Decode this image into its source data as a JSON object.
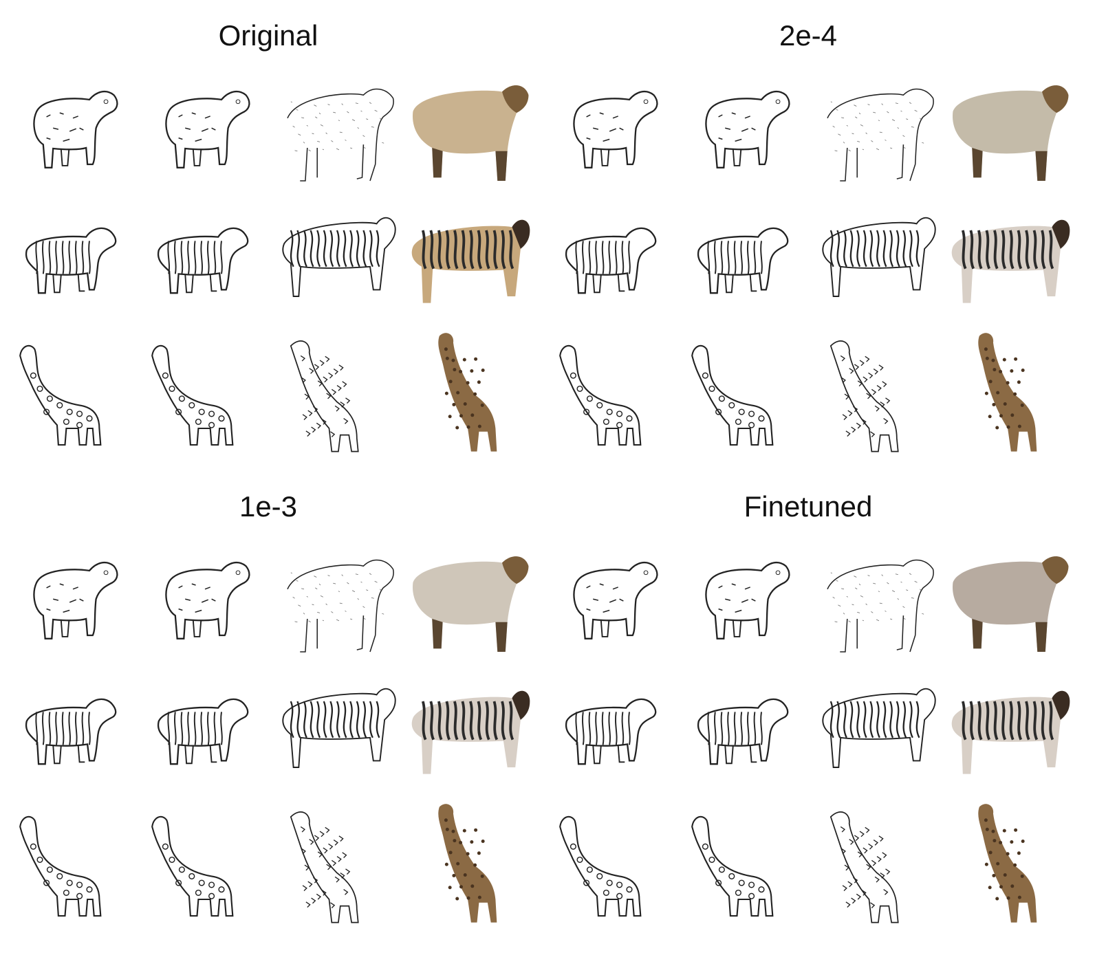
{
  "panels": [
    {
      "title": "Original",
      "rows": [
        "sheep",
        "zebra",
        "giraffe"
      ]
    },
    {
      "title": "2e-4",
      "rows": [
        "sheep",
        "zebra",
        "giraffe"
      ]
    },
    {
      "title": "1e-3",
      "rows": [
        "sheep",
        "zebra",
        "giraffe"
      ]
    },
    {
      "title": "Finetuned",
      "rows": [
        "sheep",
        "zebra",
        "giraffe"
      ]
    }
  ],
  "columns": [
    "input-sketch",
    "reconstructed-sketch",
    "generated-edge-map",
    "generated-photo"
  ],
  "colors": {
    "sheep_photo": "#c9b28f",
    "sheep_head": "#7a5d3a",
    "zebra_photo": "#c7a87c",
    "giraffe_photo": "#8b6a44",
    "ink": "#222222"
  }
}
